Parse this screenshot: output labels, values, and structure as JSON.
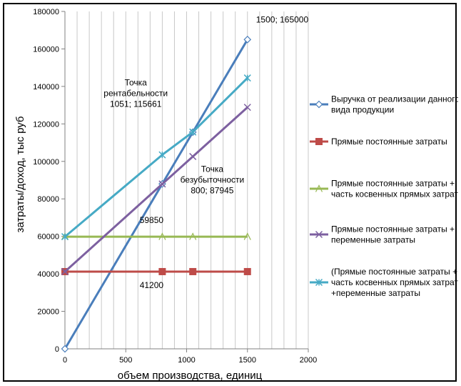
{
  "chart_data": {
    "type": "line",
    "title": "",
    "xlabel": "объем производства, единиц",
    "ylabel": "затраты/доход, тыс руб",
    "xlim": [
      0,
      2000
    ],
    "ylim": [
      0,
      180000
    ],
    "x_ticks": [
      "0",
      "500",
      "1000",
      "1500",
      "2000"
    ],
    "y_ticks": [
      "0",
      "20000",
      "40000",
      "60000",
      "80000",
      "100000",
      "120000",
      "140000",
      "160000",
      "180000"
    ],
    "grid": "vertical",
    "legend_position": "right",
    "series": [
      {
        "name": "Выручка от реализации данного вида продукции",
        "legend_lines": [
          "Выручка от реализации данного",
          "вида продукции"
        ],
        "color": "#4a7ebb",
        "marker": "diamond",
        "points": [
          [
            0,
            0
          ],
          [
            800,
            88000
          ],
          [
            1051,
            115600
          ],
          [
            1500,
            165000
          ]
        ]
      },
      {
        "name": "Прямые постоянные затраты",
        "legend_lines": [
          "Прямые постоянные затраты"
        ],
        "color": "#be4b48",
        "marker": "square",
        "points": [
          [
            0,
            41200
          ],
          [
            800,
            41200
          ],
          [
            1051,
            41200
          ],
          [
            1500,
            41200
          ]
        ]
      },
      {
        "name": "Прямые постоянные затраты + часть косвенных прямых затрат",
        "legend_lines": [
          "Прямые постоянные затраты +",
          "часть косвенных прямых затрат"
        ],
        "color": "#98b954",
        "marker": "triangle",
        "points": [
          [
            0,
            59850
          ],
          [
            800,
            59850
          ],
          [
            1051,
            59850
          ],
          [
            1500,
            59850
          ]
        ]
      },
      {
        "name": "Прямые постоянные затраты + переменные затраты",
        "legend_lines": [
          "Прямые постоянные затраты +",
          "переменные затраты"
        ],
        "color": "#7d60a0",
        "marker": "x",
        "points": [
          [
            0,
            41200
          ],
          [
            800,
            87945
          ],
          [
            1051,
            102600
          ],
          [
            1500,
            128850
          ]
        ]
      },
      {
        "name": "(Прямые постоянные затраты + часть косвенных прямых затрат) + переменные затраты",
        "legend_lines": [
          "(Прямые постоянные затраты +",
          "часть косвенных прямых затрат)",
          "+переменные затраты"
        ],
        "color": "#46aac5",
        "marker": "star",
        "points": [
          [
            0,
            59850
          ],
          [
            800,
            103500
          ],
          [
            1051,
            115661
          ],
          [
            1500,
            144500
          ]
        ]
      }
    ],
    "annotations": [
      {
        "lines": [
          "1500; 165000"
        ],
        "x": 1500,
        "y": 165000,
        "anchor": "start",
        "dx": 12,
        "dy": -24
      },
      {
        "lines": [
          "Точка",
          "рентабельности",
          "1051; 115661"
        ],
        "x": 1051,
        "y": 115661,
        "anchor": "middle",
        "dx": -80,
        "dy": -50
      },
      {
        "lines": [
          "Точка",
          "безубыточности",
          "800; 87945"
        ],
        "x": 800,
        "y": 87945,
        "anchor": "middle",
        "dx": 70,
        "dy": -2
      },
      {
        "lines": [
          "59850"
        ],
        "x": 800,
        "y": 59850,
        "anchor": "middle",
        "dx": -15,
        "dy": -19
      },
      {
        "lines": [
          "41200"
        ],
        "x": 800,
        "y": 41200,
        "anchor": "middle",
        "dx": -15,
        "dy": 23
      }
    ]
  }
}
